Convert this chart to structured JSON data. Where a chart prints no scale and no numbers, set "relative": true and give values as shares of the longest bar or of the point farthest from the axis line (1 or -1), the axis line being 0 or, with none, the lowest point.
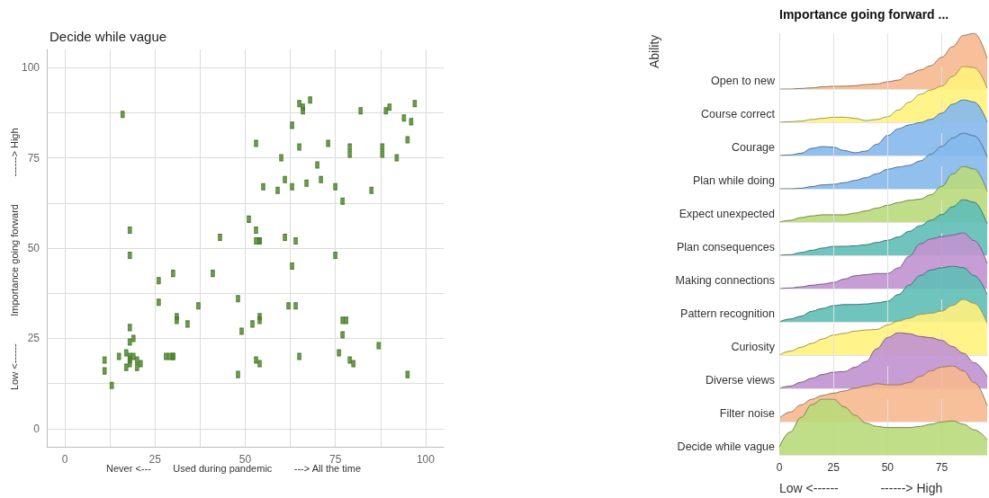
{
  "chart_data": [
    {
      "type": "scatter",
      "title": "Decide while vague",
      "xlabel": "Never <---        Used during pandemic        ---> All the time",
      "ylabel": "Low <------          Importance going forward          ------> High",
      "color": "#4f8a2b",
      "marker": "square",
      "grid": true,
      "x": [
        16,
        18,
        18,
        26,
        30,
        41,
        43,
        26,
        37,
        31,
        31,
        34,
        18,
        18,
        19,
        11,
        15,
        17,
        18,
        18,
        19,
        20,
        11,
        17,
        18,
        20,
        21,
        13,
        28,
        29,
        30,
        30,
        48,
        48,
        49,
        52,
        54,
        54,
        53,
        54,
        51,
        53,
        53,
        54,
        54,
        55,
        53,
        59,
        60,
        61,
        63,
        63,
        61,
        64,
        63,
        62,
        64,
        65,
        65,
        65,
        66,
        66,
        68,
        67,
        70,
        71,
        73,
        75,
        75,
        77,
        77,
        78,
        77,
        76,
        79,
        80,
        79,
        79,
        82,
        85,
        87,
        88,
        88,
        89,
        90,
        92,
        94,
        96,
        95,
        97,
        95
      ],
      "values": [
        87,
        55,
        48,
        41,
        43,
        43,
        53,
        35,
        34,
        31,
        30,
        29,
        28,
        24,
        25,
        19,
        20,
        21,
        20,
        19,
        20,
        19,
        16,
        17,
        18,
        17,
        18,
        12,
        20,
        20,
        20,
        20,
        15,
        36,
        27,
        29,
        31,
        30,
        19,
        18,
        58,
        55,
        52,
        52,
        52,
        67,
        79,
        66,
        75,
        69,
        67,
        84,
        53,
        52,
        45,
        34,
        34,
        20,
        78,
        90,
        89,
        88,
        91,
        68,
        73,
        69,
        79,
        48,
        67,
        63,
        30,
        30,
        26,
        21,
        19,
        18,
        78,
        76,
        88,
        66,
        23,
        76,
        78,
        88,
        89,
        75,
        86,
        85,
        80,
        90,
        15
      ],
      "xlim": [
        -5,
        105
      ],
      "ylim": [
        -5,
        105
      ],
      "xticks": [
        0,
        {
          "value": 12.5,
          "label": null
        },
        25,
        {
          "value": 37.5,
          "label": null
        },
        50,
        {
          "value": 62.5,
          "label": null
        },
        75,
        {
          "value": 87.5,
          "label": null
        },
        100
      ],
      "yticks": [
        0,
        {
          "value": 12.5,
          "label": null
        },
        25,
        {
          "value": 37.5,
          "label": null
        },
        50,
        {
          "value": 62.5,
          "label": null
        },
        75,
        {
          "value": 87.5,
          "label": null
        },
        100
      ]
    },
    {
      "type": "area",
      "title": "Importance going forward ...",
      "ylabel": "Ability",
      "relative": true,
      "grid": "x",
      "tick_labels": false,
      "xlim": [
        0,
        96
      ],
      "xticks": [
        0,
        25,
        50,
        75
      ],
      "x": [
        0,
        5,
        10,
        15,
        20,
        25,
        30,
        35,
        40,
        45,
        50,
        55,
        60,
        65,
        70,
        75,
        80,
        85,
        90,
        96
      ],
      "series": [
        {
          "name": "Open to new",
          "color": "#f6b98f",
          "values": [
            0,
            0,
            0.01,
            0.02,
            0.04,
            0.05,
            0.05,
            0.06,
            0.08,
            0.09,
            0.13,
            0.16,
            0.27,
            0.34,
            0.42,
            0.57,
            0.76,
            0.96,
            1,
            0.55
          ]
        }
      ]
    },
    {
      "type": "area",
      "relative": true,
      "grid": "x",
      "tick_labels": false,
      "xlim": [
        0,
        96
      ],
      "xticks": [
        0,
        25,
        50,
        75
      ],
      "x": [
        0,
        5,
        10,
        15,
        20,
        25,
        30,
        35,
        40,
        45,
        50,
        55,
        60,
        65,
        70,
        75,
        80,
        85,
        90,
        96
      ],
      "series": [
        {
          "name": "Course correct",
          "color": "#fff27d",
          "values": [
            0,
            0.01,
            0.02,
            0.05,
            0.07,
            0.09,
            0.09,
            0.07,
            0.03,
            0.05,
            0.1,
            0.22,
            0.36,
            0.5,
            0.58,
            0.65,
            0.82,
            1,
            0.98,
            0.61
          ]
        }
      ]
    },
    {
      "type": "area",
      "relative": true,
      "grid": "x",
      "tick_labels": false,
      "xlim": [
        0,
        96
      ],
      "xticks": [
        0,
        25,
        50,
        75
      ],
      "x": [
        0,
        5,
        10,
        15,
        20,
        25,
        30,
        35,
        40,
        45,
        50,
        55,
        60,
        65,
        70,
        75,
        80,
        85,
        90,
        96
      ],
      "series": [
        {
          "name": "Courage",
          "color": "#85b8ec",
          "values": [
            0,
            0.01,
            0.04,
            0.13,
            0.16,
            0.15,
            0.09,
            0.05,
            0.08,
            0.2,
            0.36,
            0.48,
            0.55,
            0.59,
            0.65,
            0.76,
            0.92,
            1,
            0.96,
            0.6
          ]
        }
      ]
    },
    {
      "type": "area",
      "relative": true,
      "grid": "x",
      "tick_labels": false,
      "xlim": [
        0,
        96
      ],
      "xticks": [
        0,
        25,
        50,
        75
      ],
      "x": [
        0,
        5,
        10,
        15,
        20,
        25,
        30,
        35,
        40,
        45,
        50,
        55,
        60,
        65,
        70,
        75,
        80,
        85,
        90,
        96
      ],
      "series": [
        {
          "name": "Plan while doing",
          "color": "#85b8ec",
          "values": [
            0,
            0,
            0.01,
            0.04,
            0.07,
            0.08,
            0.11,
            0.15,
            0.2,
            0.27,
            0.35,
            0.39,
            0.42,
            0.5,
            0.62,
            0.76,
            0.91,
            1,
            0.95,
            0.57
          ]
        }
      ]
    },
    {
      "type": "area",
      "relative": true,
      "grid": "x",
      "tick_labels": false,
      "xlim": [
        0,
        96
      ],
      "xticks": [
        0,
        25,
        50,
        75
      ],
      "x": [
        0,
        5,
        10,
        15,
        20,
        25,
        30,
        35,
        40,
        45,
        50,
        55,
        60,
        65,
        70,
        75,
        80,
        85,
        90,
        96
      ],
      "series": [
        {
          "name": "Expect unexpected",
          "color": "#b9d97b",
          "values": [
            0,
            0.03,
            0.08,
            0.11,
            0.13,
            0.13,
            0.13,
            0.16,
            0.2,
            0.25,
            0.3,
            0.35,
            0.39,
            0.41,
            0.49,
            0.64,
            0.86,
            1,
            0.95,
            0.55
          ]
        }
      ]
    },
    {
      "type": "area",
      "relative": true,
      "grid": "x",
      "tick_labels": false,
      "xlim": [
        0,
        96
      ],
      "xticks": [
        0,
        25,
        50,
        75
      ],
      "x": [
        0,
        5,
        10,
        15,
        20,
        25,
        30,
        35,
        40,
        45,
        50,
        55,
        60,
        65,
        70,
        75,
        80,
        85,
        90,
        96
      ],
      "series": [
        {
          "name": "Plan consequences",
          "color": "#5fbeb6",
          "values": [
            0,
            0.01,
            0.05,
            0.09,
            0.13,
            0.16,
            0.16,
            0.17,
            0.19,
            0.23,
            0.27,
            0.33,
            0.43,
            0.53,
            0.63,
            0.73,
            0.87,
            1,
            0.95,
            0.56
          ]
        }
      ]
    },
    {
      "type": "area",
      "relative": true,
      "grid": "x",
      "tick_labels": false,
      "xlim": [
        0,
        96
      ],
      "xticks": [
        0,
        25,
        50,
        75
      ],
      "x": [
        0,
        5,
        10,
        15,
        20,
        25,
        30,
        35,
        40,
        45,
        50,
        55,
        60,
        65,
        70,
        75,
        80,
        85,
        90,
        96
      ],
      "series": [
        {
          "name": "Making connections",
          "color": "#c192d0",
          "values": [
            0,
            0.01,
            0.03,
            0.06,
            0.08,
            0.11,
            0.17,
            0.23,
            0.25,
            0.27,
            0.27,
            0.37,
            0.58,
            0.8,
            0.89,
            0.93,
            0.96,
            1,
            0.86,
            0.45
          ]
        }
      ]
    },
    {
      "type": "area",
      "relative": true,
      "grid": "x",
      "tick_labels": false,
      "xlim": [
        0,
        96
      ],
      "xticks": [
        0,
        25,
        50,
        75
      ],
      "x": [
        0,
        5,
        10,
        15,
        20,
        25,
        30,
        35,
        40,
        45,
        50,
        55,
        60,
        65,
        70,
        75,
        80,
        85,
        90,
        96
      ],
      "series": [
        {
          "name": "Pattern recognition",
          "color": "#5fbeb6",
          "values": [
            0,
            0.05,
            0.1,
            0.19,
            0.24,
            0.29,
            0.31,
            0.31,
            0.32,
            0.34,
            0.37,
            0.49,
            0.66,
            0.83,
            0.93,
            0.97,
            1,
            0.97,
            0.83,
            0.49
          ]
        }
      ]
    },
    {
      "type": "area",
      "relative": true,
      "grid": "x",
      "tick_labels": false,
      "xlim": [
        0,
        96
      ],
      "xticks": [
        0,
        25,
        50,
        75
      ],
      "x": [
        0,
        5,
        10,
        15,
        20,
        25,
        30,
        35,
        40,
        45,
        50,
        55,
        60,
        65,
        70,
        75,
        80,
        85,
        90,
        96
      ],
      "series": [
        {
          "name": "Curiosity",
          "color": "#fff27d",
          "values": [
            0,
            0.07,
            0.14,
            0.21,
            0.29,
            0.36,
            0.39,
            0.43,
            0.45,
            0.46,
            0.54,
            0.61,
            0.66,
            0.73,
            0.75,
            0.79,
            0.89,
            1,
            0.93,
            0.57
          ]
        }
      ]
    },
    {
      "type": "area",
      "relative": true,
      "grid": "x",
      "tick_labels": false,
      "xlim": [
        0,
        96
      ],
      "xticks": [
        0,
        25,
        50,
        75
      ],
      "x": [
        0,
        5,
        10,
        15,
        20,
        25,
        30,
        35,
        40,
        45,
        50,
        55,
        60,
        65,
        70,
        75,
        80,
        85,
        90,
        96
      ],
      "series": [
        {
          "name": "Diverse views",
          "color": "#c192d0",
          "values": [
            0,
            0.04,
            0.11,
            0.18,
            0.25,
            0.29,
            0.3,
            0.38,
            0.48,
            0.71,
            0.91,
            1,
            0.98,
            0.93,
            0.91,
            0.86,
            0.75,
            0.63,
            0.46,
            0.21
          ]
        }
      ]
    },
    {
      "type": "area",
      "relative": true,
      "grid": "x",
      "tick_labels": false,
      "xlim": [
        0,
        96
      ],
      "xticks": [
        0,
        25,
        50,
        75
      ],
      "x": [
        0,
        5,
        10,
        15,
        20,
        25,
        30,
        35,
        40,
        45,
        50,
        55,
        60,
        65,
        70,
        75,
        80,
        85,
        90,
        96
      ],
      "series": [
        {
          "name": "Filter noise",
          "color": "#f6b98f",
          "values": [
            0.06,
            0.17,
            0.3,
            0.4,
            0.47,
            0.51,
            0.55,
            0.6,
            0.64,
            0.68,
            0.66,
            0.66,
            0.7,
            0.81,
            0.91,
            0.98,
            1,
            0.91,
            0.7,
            0.28
          ]
        }
      ]
    },
    {
      "type": "area",
      "xlabel": "Low <------            ------> High",
      "relative": true,
      "grid": "x",
      "tick_labels": "x",
      "xlim": [
        0,
        96
      ],
      "xticks": [
        0,
        25,
        50,
        75
      ],
      "x": [
        0,
        5,
        10,
        15,
        20,
        25,
        30,
        35,
        40,
        45,
        50,
        55,
        60,
        65,
        70,
        75,
        80,
        85,
        90,
        96
      ],
      "series": [
        {
          "name": "Decide while vague",
          "color": "#b9d97b",
          "values": [
            0.14,
            0.41,
            0.67,
            0.9,
            1,
            1,
            0.86,
            0.71,
            0.57,
            0.51,
            0.49,
            0.49,
            0.49,
            0.51,
            0.55,
            0.59,
            0.61,
            0.55,
            0.45,
            0.27
          ]
        }
      ]
    }
  ]
}
